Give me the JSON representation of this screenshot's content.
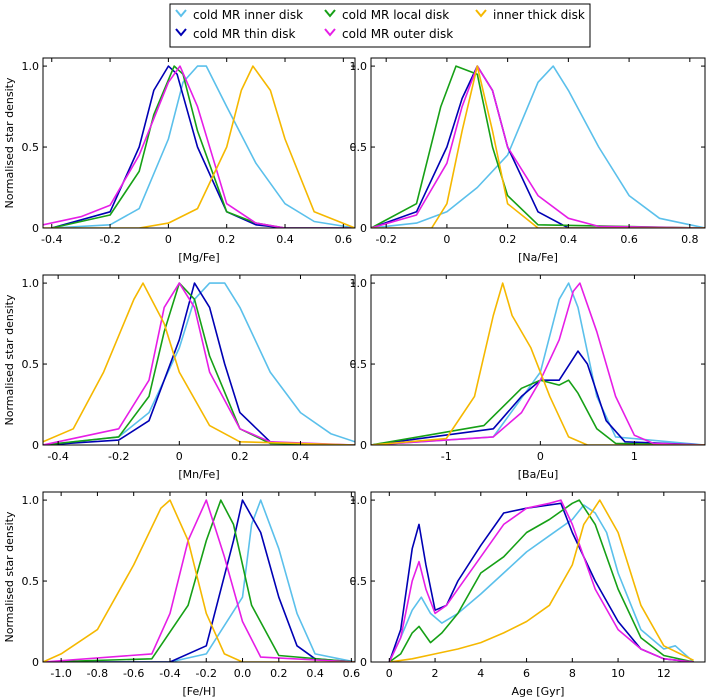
{
  "legend": {
    "entries": [
      {
        "label": "cold MR inner disk",
        "color": "#5bc0eb"
      },
      {
        "label": "cold MR thin disk",
        "color": "#0000b4"
      },
      {
        "label": "cold MR local disk",
        "color": "#16a016"
      },
      {
        "label": "cold MR outer disk",
        "color": "#e61ee6"
      },
      {
        "label": "inner thick disk",
        "color": "#f5b800"
      }
    ]
  },
  "chart_data": [
    {
      "type": "line",
      "xlabel": "[Mg/Fe]",
      "ylabel": "Normalised star density",
      "xlim": [
        -0.43,
        0.64
      ],
      "ylim": [
        0,
        1.05
      ],
      "xticks": [
        -0.4,
        -0.2,
        0,
        0.2,
        0.4,
        0.6
      ],
      "xticklabels": [
        "-0.4",
        "-0.2",
        "0",
        "0.2",
        "0.4",
        "0.6"
      ],
      "yticks": [
        0,
        0.5,
        1.0
      ],
      "yticklabels": [
        "0",
        "0.5",
        "1.0"
      ],
      "series": [
        {
          "name": "cold MR inner disk",
          "x": [
            -0.4,
            -0.2,
            -0.1,
            0.0,
            0.05,
            0.1,
            0.13,
            0.2,
            0.3,
            0.4,
            0.5,
            0.64
          ],
          "y": [
            0.0,
            0.02,
            0.12,
            0.55,
            0.9,
            1.0,
            1.0,
            0.75,
            0.4,
            0.15,
            0.04,
            0.0
          ]
        },
        {
          "name": "cold MR thin disk",
          "x": [
            -0.4,
            -0.2,
            -0.1,
            -0.05,
            0.0,
            0.03,
            0.1,
            0.2,
            0.3,
            0.4,
            0.64
          ],
          "y": [
            0.0,
            0.1,
            0.5,
            0.85,
            1.0,
            0.95,
            0.5,
            0.1,
            0.02,
            0.0,
            0.0
          ]
        },
        {
          "name": "cold MR local disk",
          "x": [
            -0.4,
            -0.2,
            -0.1,
            -0.05,
            0.02,
            0.05,
            0.1,
            0.2,
            0.3,
            0.4,
            0.64
          ],
          "y": [
            0.0,
            0.08,
            0.35,
            0.7,
            1.0,
            0.95,
            0.6,
            0.1,
            0.03,
            0.0,
            0.0
          ]
        },
        {
          "name": "cold MR outer disk",
          "x": [
            -0.43,
            -0.3,
            -0.2,
            -0.1,
            0.0,
            0.04,
            0.1,
            0.2,
            0.3,
            0.4,
            0.64
          ],
          "y": [
            0.02,
            0.07,
            0.14,
            0.45,
            0.9,
            1.0,
            0.75,
            0.15,
            0.03,
            0.0,
            0.0
          ]
        },
        {
          "name": "inner thick disk",
          "x": [
            -0.43,
            -0.1,
            0.0,
            0.1,
            0.2,
            0.25,
            0.29,
            0.35,
            0.4,
            0.5,
            0.64
          ],
          "y": [
            0.0,
            0.0,
            0.03,
            0.12,
            0.5,
            0.85,
            1.0,
            0.85,
            0.55,
            0.1,
            0.0
          ]
        }
      ]
    },
    {
      "type": "line",
      "xlabel": "[Na/Fe]",
      "ylabel": "",
      "xlim": [
        -0.25,
        0.85
      ],
      "ylim": [
        0,
        1.05
      ],
      "xticks": [
        -0.2,
        0,
        0.2,
        0.4,
        0.6,
        0.8
      ],
      "xticklabels": [
        "-0.2",
        "0",
        "0.2",
        "0.4",
        "0.6",
        "0.8"
      ],
      "yticks": [
        0,
        0.5,
        1.0
      ],
      "yticklabels": [
        "0",
        "0.5",
        "1.0"
      ],
      "series": [
        {
          "name": "cold MR inner disk",
          "x": [
            -0.25,
            -0.1,
            0.0,
            0.1,
            0.2,
            0.3,
            0.35,
            0.4,
            0.5,
            0.6,
            0.7,
            0.85
          ],
          "y": [
            0.0,
            0.03,
            0.1,
            0.25,
            0.45,
            0.9,
            1.0,
            0.85,
            0.5,
            0.2,
            0.06,
            0.0
          ]
        },
        {
          "name": "cold MR thin disk",
          "x": [
            -0.25,
            -0.1,
            0.0,
            0.05,
            0.1,
            0.15,
            0.2,
            0.3,
            0.4,
            0.85
          ],
          "y": [
            0.0,
            0.1,
            0.5,
            0.8,
            1.0,
            0.85,
            0.5,
            0.1,
            0.0,
            0.0
          ]
        },
        {
          "name": "cold MR local disk",
          "x": [
            -0.25,
            -0.1,
            -0.02,
            0.03,
            0.1,
            0.15,
            0.2,
            0.3,
            0.85
          ],
          "y": [
            0.0,
            0.15,
            0.75,
            1.0,
            0.95,
            0.5,
            0.2,
            0.02,
            0.0
          ]
        },
        {
          "name": "cold MR outer disk",
          "x": [
            -0.25,
            -0.1,
            0.0,
            0.05,
            0.1,
            0.15,
            0.2,
            0.3,
            0.4,
            0.5,
            0.85
          ],
          "y": [
            0.0,
            0.08,
            0.4,
            0.75,
            1.0,
            0.85,
            0.5,
            0.2,
            0.06,
            0.01,
            0.0
          ]
        },
        {
          "name": "inner thick disk",
          "x": [
            -0.25,
            -0.05,
            0.0,
            0.05,
            0.1,
            0.15,
            0.2,
            0.3,
            0.85
          ],
          "y": [
            0.0,
            0.0,
            0.15,
            0.6,
            1.0,
            0.6,
            0.15,
            0.0,
            0.0
          ]
        }
      ]
    },
    {
      "type": "line",
      "xlabel": "[Mn/Fe]",
      "ylabel": "Normalised star density",
      "xlim": [
        -0.45,
        0.58
      ],
      "ylim": [
        0,
        1.05
      ],
      "xticks": [
        -0.4,
        -0.2,
        0,
        0.2,
        0.4
      ],
      "xticklabels": [
        "-0.4",
        "-0.2",
        "0",
        "0.2",
        "0.4"
      ],
      "yticks": [
        0,
        0.5,
        1.0
      ],
      "yticklabels": [
        "0",
        "0.5",
        "1.0"
      ],
      "series": [
        {
          "name": "cold MR inner disk",
          "x": [
            -0.45,
            -0.2,
            -0.1,
            0.0,
            0.05,
            0.1,
            0.15,
            0.2,
            0.3,
            0.4,
            0.5,
            0.58
          ],
          "y": [
            0.0,
            0.05,
            0.2,
            0.6,
            0.9,
            1.0,
            1.0,
            0.85,
            0.45,
            0.2,
            0.07,
            0.02
          ]
        },
        {
          "name": "cold MR thin disk",
          "x": [
            -0.45,
            -0.2,
            -0.1,
            0.0,
            0.05,
            0.1,
            0.15,
            0.2,
            0.3,
            0.4,
            0.58
          ],
          "y": [
            0.0,
            0.03,
            0.15,
            0.65,
            1.0,
            0.85,
            0.5,
            0.2,
            0.02,
            0.0,
            0.0
          ]
        },
        {
          "name": "cold MR local disk",
          "x": [
            -0.45,
            -0.2,
            -0.1,
            -0.05,
            0.0,
            0.05,
            0.1,
            0.2,
            0.3,
            0.58
          ],
          "y": [
            0.0,
            0.05,
            0.3,
            0.7,
            1.0,
            0.9,
            0.55,
            0.1,
            0.01,
            0.0
          ]
        },
        {
          "name": "cold MR outer disk",
          "x": [
            -0.45,
            -0.2,
            -0.1,
            -0.05,
            0.0,
            0.05,
            0.1,
            0.2,
            0.3,
            0.58
          ],
          "y": [
            0.0,
            0.1,
            0.4,
            0.85,
            1.0,
            0.85,
            0.45,
            0.1,
            0.02,
            0.0
          ]
        },
        {
          "name": "inner thick disk",
          "x": [
            -0.45,
            -0.35,
            -0.25,
            -0.15,
            -0.12,
            -0.05,
            0.0,
            0.1,
            0.2,
            0.58
          ],
          "y": [
            0.02,
            0.1,
            0.45,
            0.9,
            1.0,
            0.75,
            0.45,
            0.12,
            0.02,
            0.0
          ]
        }
      ]
    },
    {
      "type": "line",
      "xlabel": "[Ba/Eu]",
      "ylabel": "",
      "xlim": [
        -1.8,
        1.75
      ],
      "ylim": [
        0,
        1.05
      ],
      "xticks": [
        -1,
        0,
        1
      ],
      "xticklabels": [
        "-1",
        "0",
        "1"
      ],
      "yticks": [
        0,
        0.5,
        1.0
      ],
      "yticklabels": [
        "0",
        "0.5",
        "1.0"
      ],
      "series": [
        {
          "name": "cold MR inner disk",
          "x": [
            -1.8,
            -0.5,
            0.0,
            0.2,
            0.3,
            0.4,
            0.6,
            0.8,
            1.75
          ],
          "y": [
            0.0,
            0.05,
            0.45,
            0.9,
            1.0,
            0.85,
            0.3,
            0.05,
            0.0
          ]
        },
        {
          "name": "cold MR thin disk",
          "x": [
            -1.8,
            -0.5,
            -0.2,
            0.0,
            0.2,
            0.4,
            0.5,
            0.7,
            0.9,
            1.75
          ],
          "y": [
            0.0,
            0.1,
            0.3,
            0.4,
            0.4,
            0.58,
            0.5,
            0.15,
            0.02,
            0.0
          ]
        },
        {
          "name": "cold MR local disk",
          "x": [
            -1.8,
            -0.6,
            -0.2,
            0.0,
            0.2,
            0.3,
            0.4,
            0.6,
            0.8,
            1.75
          ],
          "y": [
            0.0,
            0.12,
            0.35,
            0.4,
            0.37,
            0.4,
            0.32,
            0.1,
            0.01,
            0.0
          ]
        },
        {
          "name": "cold MR outer disk",
          "x": [
            -1.8,
            -0.5,
            -0.2,
            0.0,
            0.2,
            0.35,
            0.42,
            0.6,
            0.8,
            1.0,
            1.2,
            1.75
          ],
          "y": [
            0.0,
            0.05,
            0.2,
            0.4,
            0.65,
            0.95,
            1.0,
            0.7,
            0.3,
            0.06,
            0.01,
            0.0
          ]
        },
        {
          "name": "inner thick disk",
          "x": [
            -1.8,
            -1.0,
            -0.7,
            -0.5,
            -0.4,
            -0.3,
            -0.1,
            0.1,
            0.3,
            0.5,
            1.75
          ],
          "y": [
            0.0,
            0.04,
            0.3,
            0.8,
            1.0,
            0.8,
            0.6,
            0.3,
            0.05,
            0.0,
            0.0
          ]
        }
      ]
    },
    {
      "type": "line",
      "xlabel": "[Fe/H]",
      "ylabel": "Normalised star density",
      "xlim": [
        -1.1,
        0.62
      ],
      "ylim": [
        0,
        1.05
      ],
      "xticks": [
        -1.0,
        -0.8,
        -0.6,
        -0.4,
        -0.2,
        0.0,
        0.2,
        0.4,
        0.6
      ],
      "xticklabels": [
        "-1.0",
        "-0.8",
        "-0.6",
        "-0.4",
        "-0.2",
        "0.0",
        "0.2",
        "0.4",
        "0.6"
      ],
      "yticks": [
        0,
        0.5,
        1.0
      ],
      "yticklabels": [
        "0",
        "0.5",
        "1.0"
      ],
      "series": [
        {
          "name": "cold MR inner disk",
          "x": [
            -1.1,
            -0.4,
            -0.2,
            0.0,
            0.05,
            0.1,
            0.2,
            0.3,
            0.4,
            0.62
          ],
          "y": [
            0.0,
            0.0,
            0.05,
            0.4,
            0.85,
            1.0,
            0.7,
            0.3,
            0.05,
            0.0
          ]
        },
        {
          "name": "cold MR thin disk",
          "x": [
            -1.1,
            -0.4,
            -0.2,
            -0.05,
            0.0,
            0.1,
            0.2,
            0.3,
            0.4,
            0.62
          ],
          "y": [
            0.0,
            0.0,
            0.1,
            0.75,
            1.0,
            0.8,
            0.4,
            0.1,
            0.02,
            0.0
          ]
        },
        {
          "name": "cold MR local disk",
          "x": [
            -1.1,
            -0.5,
            -0.3,
            -0.2,
            -0.12,
            -0.05,
            0.05,
            0.2,
            0.62
          ],
          "y": [
            0.0,
            0.02,
            0.35,
            0.75,
            1.0,
            0.85,
            0.35,
            0.04,
            0.0
          ]
        },
        {
          "name": "cold MR outer disk",
          "x": [
            -1.1,
            -0.5,
            -0.4,
            -0.3,
            -0.2,
            -0.1,
            0.0,
            0.1,
            0.62
          ],
          "y": [
            0.0,
            0.05,
            0.3,
            0.75,
            1.0,
            0.65,
            0.25,
            0.03,
            0.0
          ]
        },
        {
          "name": "inner thick disk",
          "x": [
            -1.1,
            -1.0,
            -0.8,
            -0.6,
            -0.45,
            -0.4,
            -0.3,
            -0.2,
            -0.1,
            0.0,
            0.62
          ],
          "y": [
            0.0,
            0.05,
            0.2,
            0.6,
            0.95,
            1.0,
            0.75,
            0.3,
            0.05,
            0.0,
            0.0
          ]
        }
      ]
    },
    {
      "type": "line",
      "xlabel": "Age [Gyr]",
      "ylabel": "",
      "xlim": [
        -0.8,
        13.8
      ],
      "ylim": [
        0,
        1.05
      ],
      "xticks": [
        0,
        2,
        4,
        6,
        8,
        10,
        12
      ],
      "xticklabels": [
        "0",
        "2",
        "4",
        "6",
        "8",
        "10",
        "12"
      ],
      "yticks": [
        0,
        0.5,
        1.0
      ],
      "yticklabels": [
        "0",
        "0.5",
        "1.0"
      ],
      "series": [
        {
          "name": "cold MR inner disk",
          "x": [
            0,
            0.5,
            1.0,
            1.4,
            1.8,
            2.3,
            3,
            4,
            5,
            6,
            7,
            8,
            8.5,
            9,
            9.5,
            10,
            11,
            12,
            12.5,
            13.3
          ],
          "y": [
            0.0,
            0.15,
            0.32,
            0.4,
            0.3,
            0.24,
            0.3,
            0.42,
            0.55,
            0.68,
            0.78,
            0.88,
            0.97,
            0.92,
            0.8,
            0.55,
            0.2,
            0.08,
            0.1,
            0.0
          ]
        },
        {
          "name": "cold MR thin disk",
          "x": [
            0,
            0.5,
            1.0,
            1.3,
            1.6,
            2.0,
            2.5,
            3,
            4,
            5,
            6,
            7,
            7.5,
            8,
            9,
            10,
            11,
            12,
            13.3
          ],
          "y": [
            0.0,
            0.2,
            0.7,
            0.85,
            0.6,
            0.32,
            0.35,
            0.5,
            0.72,
            0.92,
            0.95,
            0.97,
            0.98,
            0.8,
            0.5,
            0.25,
            0.08,
            0.02,
            0.0
          ]
        },
        {
          "name": "cold MR local disk",
          "x": [
            0,
            0.5,
            1.0,
            1.3,
            1.8,
            2.3,
            3,
            4,
            5,
            6,
            7,
            8,
            8.3,
            9,
            10,
            11,
            12,
            13.3
          ],
          "y": [
            0.0,
            0.05,
            0.18,
            0.22,
            0.12,
            0.18,
            0.3,
            0.55,
            0.65,
            0.8,
            0.88,
            0.98,
            1.0,
            0.85,
            0.45,
            0.15,
            0.04,
            0.0
          ]
        },
        {
          "name": "cold MR outer disk",
          "x": [
            0,
            0.5,
            1.0,
            1.3,
            1.6,
            2.0,
            2.5,
            3,
            4,
            5,
            6,
            7,
            7.5,
            8,
            9,
            10,
            11,
            12,
            13.3
          ],
          "y": [
            0.0,
            0.15,
            0.5,
            0.62,
            0.45,
            0.3,
            0.35,
            0.45,
            0.65,
            0.85,
            0.95,
            0.98,
            1.0,
            0.85,
            0.45,
            0.2,
            0.08,
            0.02,
            0.0
          ]
        },
        {
          "name": "inner thick disk",
          "x": [
            0,
            1,
            2,
            3,
            4,
            5,
            6,
            7,
            8,
            8.5,
            9.2,
            10,
            11,
            12,
            13.3
          ],
          "y": [
            0.0,
            0.02,
            0.05,
            0.08,
            0.12,
            0.18,
            0.25,
            0.35,
            0.6,
            0.85,
            1.0,
            0.8,
            0.35,
            0.1,
            0.01
          ]
        }
      ]
    }
  ]
}
